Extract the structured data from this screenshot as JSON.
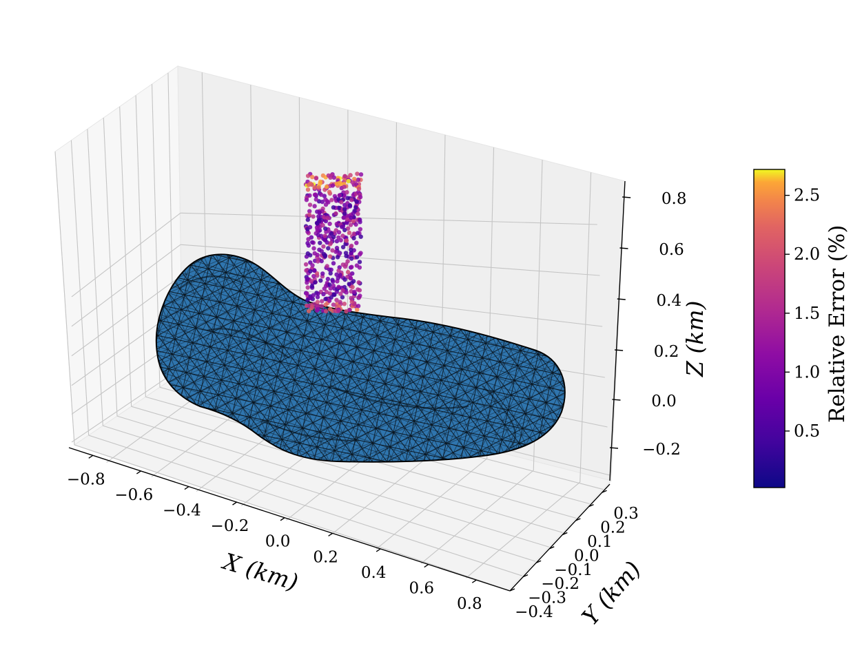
{
  "chart_data": {
    "type": "scatter",
    "projection": "3d",
    "title": "",
    "xlabel": "X (km)",
    "ylabel": "Y (km)",
    "zlabel": "Z (km)",
    "x_ticks": [
      "−0.8",
      "−0.6",
      "−0.4",
      "−0.2",
      "0.0",
      "0.2",
      "0.4",
      "0.6",
      "0.8"
    ],
    "y_ticks": [
      "−0.4",
      "−0.3",
      "−0.2",
      "−0.1",
      "0.0",
      "0.1",
      "0.2",
      "0.3"
    ],
    "z_ticks": [
      "−0.2",
      "0.0",
      "0.2",
      "0.4",
      "0.6",
      "0.8"
    ],
    "xlim": [
      -0.9,
      0.9
    ],
    "ylim": [
      -0.4,
      0.35
    ],
    "zlim": [
      -0.3,
      0.85
    ],
    "grid": true,
    "surface": {
      "description_visible": "triangulated asteroid shape model mesh",
      "face_color": "#2f75ae",
      "edge_color": "#000000"
    },
    "scatter": {
      "x_range": [
        -0.1,
        0.1
      ],
      "y_range": [
        -0.1,
        0.1
      ],
      "z_range": [
        0.35,
        0.85
      ],
      "colormap": "plasma"
    },
    "colorbar": {
      "label": "Relative Error (%)",
      "ticks": [
        "0.5",
        "1.0",
        "1.5",
        "2.0",
        "2.5"
      ],
      "tick_values": [
        0.5,
        1.0,
        1.5,
        2.0,
        2.5
      ],
      "range": [
        0.02,
        2.72
      ]
    }
  }
}
